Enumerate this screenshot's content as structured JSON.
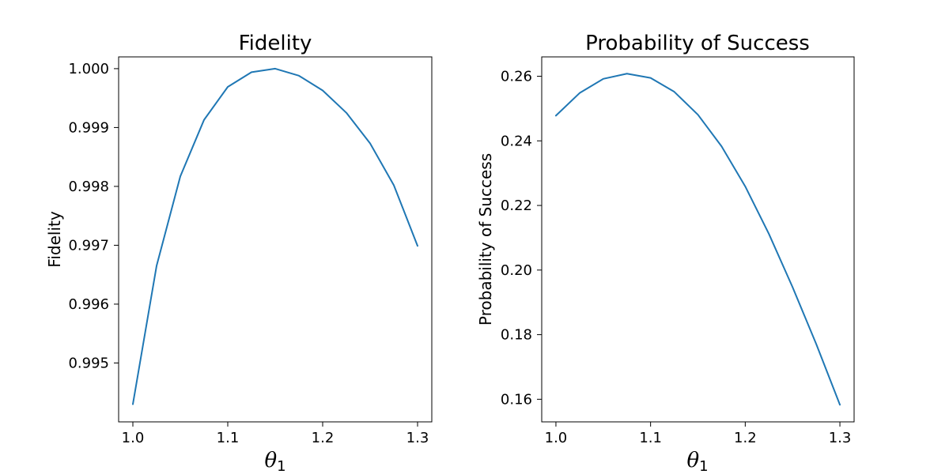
{
  "chart_data": [
    {
      "type": "line",
      "title": "Fidelity",
      "xlabel": "θ",
      "xlabel_subscript": "1",
      "ylabel": "Fidelity",
      "xlim": [
        0.985,
        1.315
      ],
      "ylim": [
        0.994,
        1.0002
      ],
      "xticks": [
        1.0,
        1.1,
        1.2,
        1.3
      ],
      "xtick_labels": [
        "1.0",
        "1.1",
        "1.2",
        "1.3"
      ],
      "yticks": [
        0.995,
        0.996,
        0.997,
        0.998,
        0.999,
        1.0
      ],
      "ytick_labels": [
        "0.995",
        "0.996",
        "0.997",
        "0.998",
        "0.999",
        "1.000"
      ],
      "grid": false,
      "color": "#1f77b4",
      "x": [
        1.0,
        1.025,
        1.05,
        1.075,
        1.1,
        1.125,
        1.15,
        1.175,
        1.2,
        1.225,
        1.25,
        1.275,
        1.3
      ],
      "y": [
        0.9943,
        0.99665,
        0.99817,
        0.99913,
        0.99969,
        0.99994,
        1.0,
        0.99988,
        0.99963,
        0.99925,
        0.99873,
        0.99802,
        0.99699
      ]
    },
    {
      "type": "line",
      "title": "Probability of Success",
      "xlabel": "θ",
      "xlabel_subscript": "1",
      "ylabel": "Probability of Success",
      "xlim": [
        0.985,
        1.315
      ],
      "ylim": [
        0.153,
        0.266
      ],
      "xticks": [
        1.0,
        1.1,
        1.2,
        1.3
      ],
      "xtick_labels": [
        "1.0",
        "1.1",
        "1.2",
        "1.3"
      ],
      "yticks": [
        0.16,
        0.18,
        0.2,
        0.22,
        0.24,
        0.26
      ],
      "ytick_labels": [
        "0.16",
        "0.18",
        "0.20",
        "0.22",
        "0.24",
        "0.26"
      ],
      "grid": false,
      "color": "#1f77b4",
      "x": [
        1.0,
        1.025,
        1.05,
        1.075,
        1.1,
        1.125,
        1.15,
        1.175,
        1.2,
        1.225,
        1.25,
        1.275,
        1.3
      ],
      "y": [
        0.2478,
        0.2548,
        0.2592,
        0.2608,
        0.2595,
        0.2552,
        0.2481,
        0.2383,
        0.2259,
        0.2112,
        0.1947,
        0.1771,
        0.1583
      ]
    }
  ]
}
